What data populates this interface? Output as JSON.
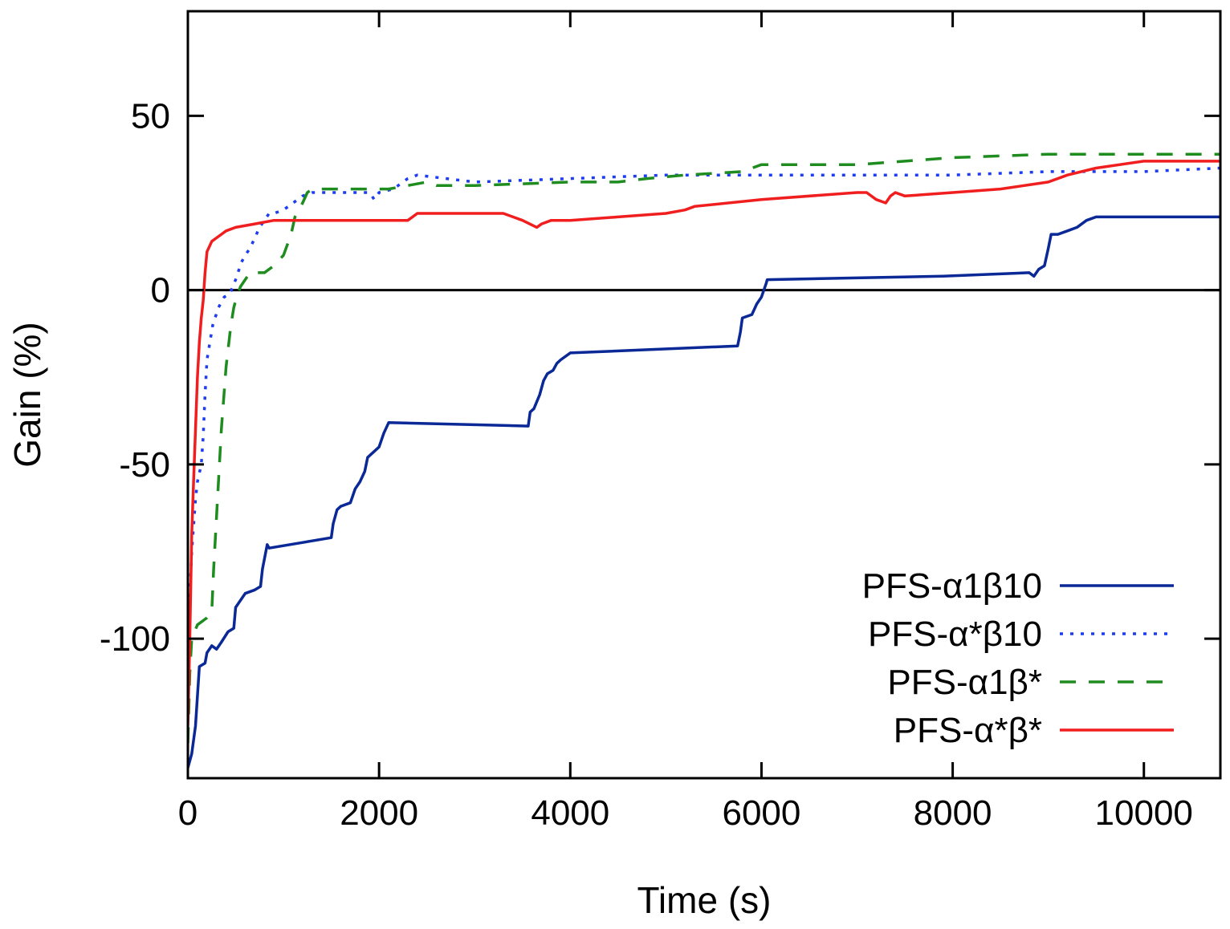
{
  "chart_data": {
    "type": "line",
    "title": "",
    "xlabel": "Time (s)",
    "ylabel": "Gain (%)",
    "xlim": [
      0,
      10800
    ],
    "ylim": [
      -140,
      80
    ],
    "x_ticks": [
      0,
      2000,
      4000,
      6000,
      8000,
      10000
    ],
    "y_ticks": [
      -100,
      -50,
      0,
      50
    ],
    "zero_line": true,
    "legend_position": "bottom-right",
    "series": [
      {
        "name": "PFS-α1β10",
        "color": "#0a2896",
        "style": "solid",
        "points": [
          [
            0,
            -137
          ],
          [
            40,
            -133
          ],
          [
            80,
            -125
          ],
          [
            120,
            -108
          ],
          [
            180,
            -107
          ],
          [
            200,
            -104
          ],
          [
            250,
            -102
          ],
          [
            300,
            -103
          ],
          [
            350,
            -101
          ],
          [
            420,
            -98
          ],
          [
            480,
            -97
          ],
          [
            500,
            -91
          ],
          [
            600,
            -87
          ],
          [
            700,
            -86
          ],
          [
            760,
            -85
          ],
          [
            780,
            -80
          ],
          [
            830,
            -73
          ],
          [
            850,
            -74
          ],
          [
            1500,
            -71
          ],
          [
            1520,
            -67
          ],
          [
            1560,
            -63
          ],
          [
            1600,
            -62
          ],
          [
            1700,
            -61
          ],
          [
            1750,
            -57
          ],
          [
            1800,
            -55
          ],
          [
            1850,
            -52
          ],
          [
            1880,
            -48
          ],
          [
            2000,
            -45
          ],
          [
            2050,
            -41
          ],
          [
            2100,
            -38
          ],
          [
            3560,
            -39
          ],
          [
            3580,
            -35
          ],
          [
            3620,
            -34
          ],
          [
            3680,
            -30
          ],
          [
            3720,
            -26
          ],
          [
            3760,
            -24
          ],
          [
            3820,
            -23
          ],
          [
            3860,
            -21
          ],
          [
            3900,
            -20
          ],
          [
            4000,
            -18
          ],
          [
            5750,
            -16
          ],
          [
            5780,
            -12
          ],
          [
            5800,
            -8
          ],
          [
            5900,
            -7
          ],
          [
            5950,
            -4
          ],
          [
            6000,
            -2
          ],
          [
            6050,
            2
          ],
          [
            6060,
            3
          ],
          [
            7900,
            4
          ],
          [
            8800,
            5
          ],
          [
            8850,
            4
          ],
          [
            8900,
            6
          ],
          [
            8960,
            7
          ],
          [
            9000,
            12
          ],
          [
            9030,
            16
          ],
          [
            9100,
            16
          ],
          [
            9200,
            17
          ],
          [
            9300,
            18
          ],
          [
            9400,
            20
          ],
          [
            9500,
            21
          ],
          [
            10800,
            21
          ]
        ]
      },
      {
        "name": "PFS-α*β10",
        "color": "#1e3cf0",
        "style": "dotted",
        "points": [
          [
            0,
            -100
          ],
          [
            40,
            -75
          ],
          [
            80,
            -60
          ],
          [
            100,
            -55
          ],
          [
            140,
            -50
          ],
          [
            160,
            -42
          ],
          [
            180,
            -30
          ],
          [
            200,
            -20
          ],
          [
            260,
            -10
          ],
          [
            320,
            -5
          ],
          [
            380,
            -2
          ],
          [
            440,
            -1
          ],
          [
            500,
            3
          ],
          [
            560,
            8
          ],
          [
            600,
            10
          ],
          [
            650,
            12
          ],
          [
            700,
            15
          ],
          [
            750,
            18
          ],
          [
            800,
            20
          ],
          [
            850,
            22
          ],
          [
            900,
            22
          ],
          [
            1000,
            23
          ],
          [
            1200,
            27
          ],
          [
            1300,
            28
          ],
          [
            1900,
            28
          ],
          [
            1950,
            26
          ],
          [
            2000,
            28
          ],
          [
            2150,
            29
          ],
          [
            2250,
            31
          ],
          [
            2300,
            32
          ],
          [
            2400,
            33
          ],
          [
            3000,
            31
          ],
          [
            4000,
            32
          ],
          [
            5000,
            33
          ],
          [
            6000,
            33
          ],
          [
            7000,
            33
          ],
          [
            8000,
            33
          ],
          [
            9000,
            34
          ],
          [
            10000,
            34
          ],
          [
            10800,
            35
          ]
        ]
      },
      {
        "name": "PFS-α1β*",
        "color": "#1e8c1e",
        "style": "dashed",
        "points": [
          [
            0,
            -130
          ],
          [
            20,
            -110
          ],
          [
            40,
            -100
          ],
          [
            100,
            -96
          ],
          [
            200,
            -94
          ],
          [
            250,
            -92
          ],
          [
            270,
            -80
          ],
          [
            300,
            -65
          ],
          [
            320,
            -55
          ],
          [
            350,
            -40
          ],
          [
            400,
            -22
          ],
          [
            450,
            -10
          ],
          [
            480,
            -5
          ],
          [
            510,
            -2
          ],
          [
            550,
            1
          ],
          [
            600,
            3
          ],
          [
            650,
            5
          ],
          [
            700,
            5
          ],
          [
            800,
            5
          ],
          [
            900,
            7
          ],
          [
            1000,
            10
          ],
          [
            1080,
            16
          ],
          [
            1120,
            21
          ],
          [
            1200,
            25
          ],
          [
            1250,
            28
          ],
          [
            1300,
            29
          ],
          [
            2100,
            29
          ],
          [
            2300,
            30
          ],
          [
            2500,
            31
          ],
          [
            2600,
            30
          ],
          [
            3000,
            30
          ],
          [
            4000,
            31
          ],
          [
            4500,
            31
          ],
          [
            4800,
            32
          ],
          [
            5200,
            33
          ],
          [
            5800,
            34
          ],
          [
            6000,
            36
          ],
          [
            6500,
            36
          ],
          [
            7000,
            36
          ],
          [
            7500,
            37
          ],
          [
            8000,
            38
          ],
          [
            9000,
            39
          ],
          [
            10000,
            39
          ],
          [
            10800,
            39
          ]
        ]
      },
      {
        "name": "PFS-α*β*",
        "color": "#f01e1e",
        "style": "solid",
        "points": [
          [
            0,
            -125
          ],
          [
            20,
            -100
          ],
          [
            40,
            -70
          ],
          [
            60,
            -55
          ],
          [
            80,
            -40
          ],
          [
            100,
            -25
          ],
          [
            120,
            -15
          ],
          [
            140,
            -8
          ],
          [
            160,
            -3
          ],
          [
            180,
            5
          ],
          [
            200,
            11
          ],
          [
            250,
            14
          ],
          [
            300,
            15
          ],
          [
            350,
            16
          ],
          [
            400,
            17
          ],
          [
            500,
            18
          ],
          [
            700,
            19
          ],
          [
            900,
            20
          ],
          [
            1100,
            20
          ],
          [
            2300,
            20
          ],
          [
            2350,
            21
          ],
          [
            2400,
            22
          ],
          [
            2700,
            22
          ],
          [
            3300,
            22
          ],
          [
            3500,
            20
          ],
          [
            3650,
            18
          ],
          [
            3700,
            19
          ],
          [
            3800,
            20
          ],
          [
            4000,
            20
          ],
          [
            4500,
            21
          ],
          [
            5000,
            22
          ],
          [
            5200,
            23
          ],
          [
            5300,
            24
          ],
          [
            6000,
            26
          ],
          [
            7000,
            28
          ],
          [
            7100,
            28
          ],
          [
            7200,
            26
          ],
          [
            7300,
            25
          ],
          [
            7350,
            27
          ],
          [
            7400,
            28
          ],
          [
            7500,
            27
          ],
          [
            8000,
            28
          ],
          [
            8500,
            29
          ],
          [
            9000,
            31
          ],
          [
            9200,
            33
          ],
          [
            9500,
            35
          ],
          [
            10000,
            37
          ],
          [
            10800,
            37
          ]
        ]
      }
    ]
  }
}
